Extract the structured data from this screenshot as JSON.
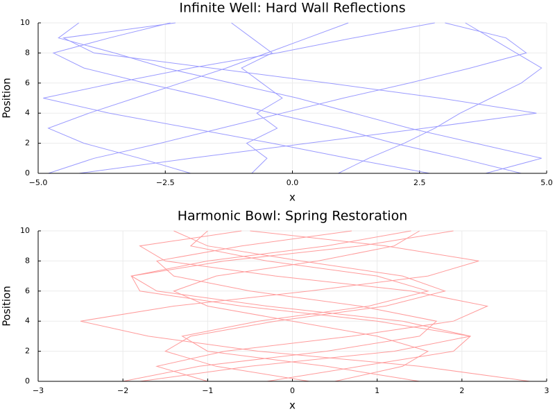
{
  "chart_data": [
    {
      "type": "line",
      "title": "Infinite Well: Hard Wall Reflections",
      "x_label": "x",
      "y_label": "Position",
      "xlim": [
        -5,
        5
      ],
      "xticks": [
        {
          "value": -5,
          "label": "−5.0"
        },
        {
          "value": -2.5,
          "label": "−2.5"
        },
        {
          "value": 0,
          "label": "0.0"
        },
        {
          "value": 2.5,
          "label": "2.5"
        },
        {
          "value": 5,
          "label": "5.0"
        }
      ],
      "ylim": [
        0,
        10
      ],
      "yticks": [
        0,
        2,
        4,
        6,
        8,
        10
      ],
      "grid": true,
      "series": [
        {
          "color": "#9a9aff",
          "x": [
            -4.8,
            -3.9,
            -2.6,
            -1.4,
            -0.2,
            1.0,
            2.3,
            3.5,
            4.6,
            4.2,
            3.0
          ],
          "values": [
            0,
            1,
            2,
            3,
            4,
            5,
            6,
            7,
            8,
            9,
            10
          ]
        },
        {
          "color": "#9a9aff",
          "x": [
            4.5,
            3.3,
            2.0,
            0.9,
            -0.4,
            -1.6,
            -2.9,
            -4.1,
            -4.7,
            -3.6,
            -2.4
          ],
          "values": [
            0,
            1,
            2,
            3,
            4,
            5,
            6,
            7,
            8,
            9,
            10
          ]
        },
        {
          "color": "#9a9aff",
          "x": [
            0.9,
            1.5,
            2.2,
            2.8,
            3.3,
            3.9,
            4.5,
            4.9,
            4.4,
            3.9,
            3.4
          ],
          "values": [
            0,
            1,
            2,
            3,
            4,
            5,
            6,
            7,
            8,
            9,
            10
          ]
        },
        {
          "color": "#9a9aff",
          "x": [
            -2.0,
            -3.0,
            -4.1,
            -4.8,
            -4.0,
            -3.1,
            -2.2,
            -1.3,
            -0.5,
            0.3,
            1.1
          ],
          "values": [
            0,
            1,
            2,
            3,
            4,
            5,
            6,
            7,
            8,
            9,
            10
          ]
        },
        {
          "color": "#9a9aff",
          "x": [
            2.7,
            1.1,
            -0.4,
            -2.0,
            -3.6,
            -4.9,
            -3.5,
            -2.0,
            -0.3,
            1.2,
            2.8
          ],
          "values": [
            0,
            1,
            2,
            3,
            4,
            5,
            6,
            7,
            8,
            9,
            10
          ]
        },
        {
          "color": "#9a9aff",
          "x": [
            -0.8,
            -0.5,
            -0.9,
            -0.3,
            -0.7,
            -0.2,
            -0.6,
            -1.0,
            -0.4,
            -0.8,
            -1.2
          ],
          "values": [
            0,
            1,
            2,
            3,
            4,
            5,
            6,
            7,
            8,
            9,
            10
          ]
        },
        {
          "color": "#9a9aff",
          "x": [
            -4.2,
            -2.0,
            0.3,
            2.6,
            4.8,
            2.9,
            0.7,
            -1.6,
            -3.9,
            -4.5,
            -2.3
          ],
          "values": [
            0,
            1,
            2,
            3,
            4,
            5,
            6,
            7,
            8,
            9,
            10
          ]
        },
        {
          "color": "#9a9aff",
          "x": [
            3.8,
            4.9,
            3.6,
            2.3,
            1.2,
            0.1,
            -1.2,
            -2.5,
            -3.5,
            -4.6,
            -4.2
          ],
          "values": [
            0,
            1,
            2,
            3,
            4,
            5,
            6,
            7,
            8,
            9,
            10
          ]
        }
      ]
    },
    {
      "type": "line",
      "title": "Harmonic Bowl: Spring Restoration",
      "x_label": "x",
      "y_label": "Position",
      "xlim": [
        -3,
        3
      ],
      "xticks": [
        {
          "value": -3,
          "label": "−3"
        },
        {
          "value": -2,
          "label": "−2"
        },
        {
          "value": -1,
          "label": "−1"
        },
        0,
        1,
        2,
        3
      ],
      "ylim": [
        0,
        10
      ],
      "yticks": [
        0,
        2,
        4,
        6,
        8,
        10
      ],
      "grid": true,
      "series": [
        {
          "color": "#ff9a9a",
          "x": [
            -1.8,
            -0.5,
            1.2,
            2.1,
            1.3,
            -0.3,
            -1.6,
            -1.9,
            -0.8,
            0.8,
            1.9
          ],
          "values": [
            0,
            1,
            2,
            3,
            4,
            5,
            6,
            7,
            8,
            9,
            10
          ]
        },
        {
          "color": "#ff9a9a",
          "x": [
            2.8,
            1.5,
            -0.4,
            -1.7,
            -2.5,
            -1.4,
            0.2,
            1.6,
            2.2,
            1.1,
            -0.5
          ],
          "values": [
            0,
            1,
            2,
            3,
            4,
            5,
            6,
            7,
            8,
            9,
            10
          ]
        },
        {
          "color": "#ff9a9a",
          "x": [
            0.5,
            1.3,
            1.6,
            1.0,
            0.0,
            -1.0,
            -1.4,
            -0.9,
            0.3,
            1.2,
            1.5
          ],
          "values": [
            0,
            1,
            2,
            3,
            4,
            5,
            6,
            7,
            8,
            9,
            10
          ]
        },
        {
          "color": "#ff9a9a",
          "x": [
            -1.0,
            -1.6,
            -0.8,
            0.7,
            1.9,
            2.3,
            1.4,
            -0.2,
            -1.5,
            -1.8,
            -0.6
          ],
          "values": [
            0,
            1,
            2,
            3,
            4,
            5,
            6,
            7,
            8,
            9,
            10
          ]
        },
        {
          "color": "#ff9a9a",
          "x": [
            1.5,
            0.4,
            -1.0,
            -1.3,
            -0.4,
            0.9,
            1.6,
            1.0,
            -0.3,
            -1.2,
            -1.0
          ],
          "values": [
            0,
            1,
            2,
            3,
            4,
            5,
            6,
            7,
            8,
            9,
            10
          ]
        },
        {
          "color": "#ff9a9a",
          "x": [
            -0.3,
            0.8,
            1.9,
            2.1,
            1.0,
            -0.6,
            -1.8,
            -1.9,
            -1.0,
            0.4,
            1.4
          ],
          "values": [
            0,
            1,
            2,
            3,
            4,
            5,
            6,
            7,
            8,
            9,
            10
          ]
        },
        {
          "color": "#ff9a9a",
          "x": [
            0.2,
            -0.9,
            -1.5,
            -1.2,
            -0.2,
            1.1,
            1.8,
            1.3,
            0.1,
            -1.0,
            -1.4
          ],
          "values": [
            0,
            1,
            2,
            3,
            4,
            5,
            6,
            7,
            8,
            9,
            10
          ]
        },
        {
          "color": "#ff9a9a",
          "x": [
            -2.0,
            -1.1,
            0.4,
            1.5,
            1.7,
            0.8,
            -0.5,
            -1.4,
            -1.6,
            -0.6,
            0.7
          ],
          "values": [
            0,
            1,
            2,
            3,
            4,
            5,
            6,
            7,
            8,
            9,
            10
          ]
        }
      ]
    }
  ]
}
